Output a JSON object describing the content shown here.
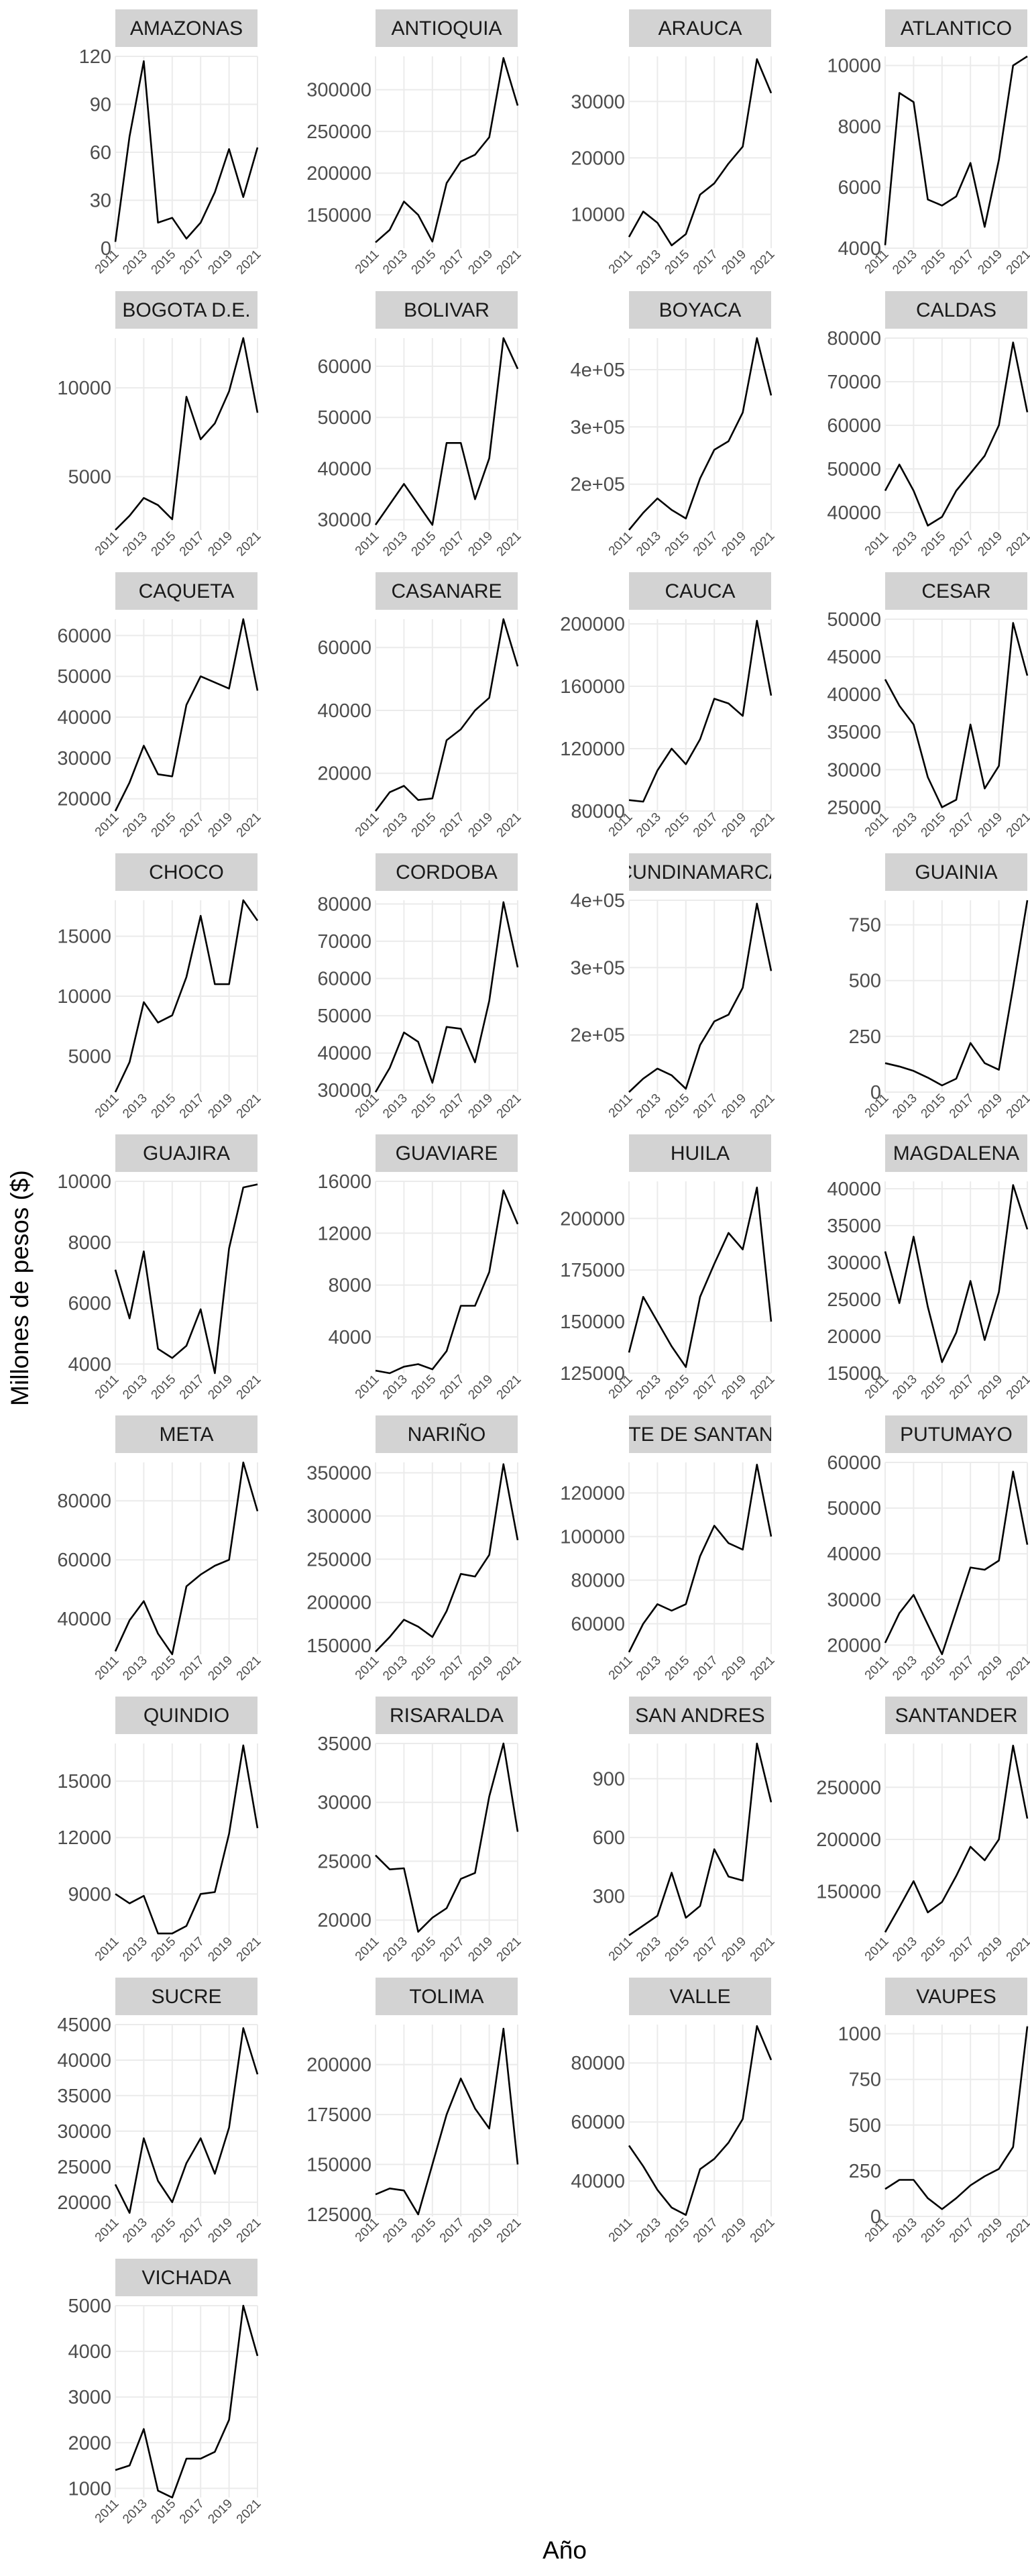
{
  "chart_data": {
    "type": "line",
    "xlabel": "Año",
    "ylabel": "Millones de pesos ($)",
    "x": [
      2011,
      2012,
      2013,
      2014,
      2015,
      2016,
      2017,
      2018,
      2019,
      2020,
      2021
    ],
    "x_tick_labels": [
      "2011",
      "2013",
      "2015",
      "2017",
      "2019",
      "2021"
    ],
    "grid": true,
    "facets": [
      {
        "name": "AMAZONAS",
        "values": [
          4,
          70,
          117,
          16,
          19,
          6,
          16,
          35,
          62,
          32,
          63
        ],
        "y_ticks": [
          "0",
          "30",
          "60",
          "90",
          "120"
        ],
        "ylim": [
          0,
          120
        ]
      },
      {
        "name": "ANTIOQUIA",
        "values": [
          117000,
          132000,
          166000,
          150000,
          118000,
          188000,
          214000,
          222000,
          243000,
          338000,
          281000
        ],
        "y_ticks": [
          "150000",
          "200000",
          "250000",
          "300000"
        ],
        "ylim": [
          110000,
          340000
        ]
      },
      {
        "name": "ARAUCA",
        "values": [
          6000,
          10500,
          8500,
          4500,
          6500,
          13500,
          15500,
          19000,
          22000,
          37500,
          31500
        ],
        "y_ticks": [
          "10000",
          "20000",
          "30000"
        ],
        "ylim": [
          4000,
          38000
        ]
      },
      {
        "name": "ATLANTICO",
        "values": [
          4100,
          9100,
          8800,
          5600,
          5400,
          5700,
          6800,
          4700,
          6900,
          10000,
          10300
        ],
        "y_ticks": [
          "4000",
          "6000",
          "8000",
          "10000"
        ],
        "ylim": [
          4000,
          10300
        ]
      },
      {
        "name": "BOGOTA D.E.",
        "values": [
          2000,
          2800,
          3800,
          3400,
          2600,
          9500,
          7100,
          8000,
          9800,
          12800,
          8600
        ],
        "y_ticks": [
          "5000",
          "10000"
        ],
        "ylim": [
          2000,
          12800
        ]
      },
      {
        "name": "BOLIVAR",
        "values": [
          29000,
          33000,
          37000,
          33000,
          29000,
          45000,
          45000,
          34000,
          42000,
          65500,
          59500
        ],
        "y_ticks": [
          "30000",
          "40000",
          "50000",
          "60000"
        ],
        "ylim": [
          28000,
          65500
        ]
      },
      {
        "name": "BOYACA",
        "values": [
          120000,
          150000,
          175000,
          155000,
          140000,
          210000,
          260000,
          275000,
          325000,
          455000,
          355000
        ],
        "y_ticks": [
          "2e+05",
          "3e+05",
          "4e+05"
        ],
        "ylim": [
          120000,
          455000
        ]
      },
      {
        "name": "CALDAS",
        "values": [
          45000,
          51000,
          45000,
          37000,
          39000,
          45000,
          49000,
          53000,
          60000,
          79000,
          63000
        ],
        "y_ticks": [
          "40000",
          "50000",
          "60000",
          "70000",
          "80000"
        ],
        "ylim": [
          36000,
          80000
        ]
      },
      {
        "name": "CAQUETA",
        "values": [
          17000,
          24000,
          33000,
          26000,
          25500,
          43000,
          50000,
          48500,
          47000,
          64000,
          46500
        ],
        "y_ticks": [
          "20000",
          "30000",
          "40000",
          "50000",
          "60000"
        ],
        "ylim": [
          17000,
          64000
        ]
      },
      {
        "name": "CASANARE",
        "values": [
          8000,
          14000,
          16000,
          11500,
          12000,
          30500,
          34000,
          40000,
          44000,
          69000,
          54000
        ],
        "y_ticks": [
          "20000",
          "40000",
          "60000"
        ],
        "ylim": [
          8000,
          69000
        ]
      },
      {
        "name": "CAUCA",
        "values": [
          87000,
          86000,
          106000,
          120000,
          110000,
          126000,
          152000,
          149000,
          141000,
          202000,
          154000
        ],
        "y_ticks": [
          "80000",
          "120000",
          "160000",
          "200000"
        ],
        "ylim": [
          80000,
          203000
        ]
      },
      {
        "name": "CESAR",
        "values": [
          42000,
          38500,
          36000,
          29000,
          25000,
          26000,
          36000,
          27500,
          30500,
          49500,
          42500
        ],
        "y_ticks": [
          "25000",
          "30000",
          "35000",
          "40000",
          "45000",
          "50000"
        ],
        "ylim": [
          24500,
          50000
        ]
      },
      {
        "name": "CHOCO",
        "values": [
          2000,
          4500,
          9500,
          7800,
          8400,
          11600,
          16700,
          11000,
          11000,
          18000,
          16300
        ],
        "y_ticks": [
          "5000",
          "10000",
          "15000"
        ],
        "ylim": [
          2000,
          18000
        ]
      },
      {
        "name": "CORDOBA",
        "values": [
          29500,
          36000,
          45500,
          43000,
          32000,
          47000,
          46500,
          37500,
          54000,
          80500,
          63000
        ],
        "y_ticks": [
          "30000",
          "40000",
          "50000",
          "60000",
          "70000",
          "80000"
        ],
        "ylim": [
          29500,
          81000
        ]
      },
      {
        "name": "CUNDINAMARCA",
        "values": [
          115000,
          135000,
          150000,
          140000,
          120000,
          185000,
          220000,
          230000,
          270000,
          395000,
          295000
        ],
        "y_ticks": [
          "2e+05",
          "3e+05",
          "4e+05"
        ],
        "ylim": [
          115000,
          400000
        ]
      },
      {
        "name": "GUAINIA",
        "values": [
          130,
          115,
          95,
          65,
          30,
          60,
          220,
          130,
          100,
          470,
          860
        ],
        "y_ticks": [
          "0",
          "250",
          "500",
          "750"
        ],
        "ylim": [
          0,
          860
        ]
      },
      {
        "name": "GUAJIRA",
        "values": [
          7100,
          5500,
          7700,
          4500,
          4200,
          4600,
          5800,
          3700,
          7800,
          9800,
          9900
        ],
        "y_ticks": [
          "4000",
          "6000",
          "8000",
          "10000"
        ],
        "ylim": [
          3700,
          10000
        ]
      },
      {
        "name": "GUAVIARE",
        "values": [
          1400,
          1200,
          1700,
          1900,
          1500,
          2900,
          6400,
          6400,
          9000,
          15300,
          12700
        ],
        "y_ticks": [
          "4000",
          "8000",
          "12000",
          "16000"
        ],
        "ylim": [
          1200,
          16000
        ]
      },
      {
        "name": "HUILA",
        "values": [
          135000,
          162000,
          150000,
          138000,
          128000,
          162000,
          178000,
          193000,
          185000,
          215000,
          150000
        ],
        "y_ticks": [
          "125000",
          "150000",
          "175000",
          "200000"
        ],
        "ylim": [
          125000,
          218000
        ]
      },
      {
        "name": "MAGDALENA",
        "values": [
          31500,
          24500,
          33500,
          24000,
          16500,
          20500,
          27500,
          19500,
          26000,
          40500,
          34500
        ],
        "y_ticks": [
          "15000",
          "20000",
          "25000",
          "30000",
          "35000",
          "40000"
        ],
        "ylim": [
          15000,
          41000
        ]
      },
      {
        "name": "META",
        "values": [
          29000,
          39500,
          46000,
          35000,
          28000,
          51000,
          55000,
          58000,
          60000,
          93000,
          76500
        ],
        "y_ticks": [
          "40000",
          "60000",
          "80000"
        ],
        "ylim": [
          28000,
          93000
        ]
      },
      {
        "name": "NARIÑO",
        "values": [
          143000,
          160000,
          180000,
          172000,
          160000,
          190000,
          233000,
          230000,
          255000,
          360000,
          272000
        ],
        "y_ticks": [
          "150000",
          "200000",
          "250000",
          "300000",
          "350000"
        ],
        "ylim": [
          140000,
          362000
        ]
      },
      {
        "name": "NORTE DE SANTANDER",
        "values": [
          47000,
          60000,
          69000,
          66000,
          69000,
          91000,
          105000,
          97000,
          94000,
          133000,
          100000
        ],
        "y_ticks": [
          "60000",
          "80000",
          "100000",
          "120000"
        ],
        "ylim": [
          46000,
          134000
        ]
      },
      {
        "name": "PUTUMAYO",
        "values": [
          20500,
          27000,
          31000,
          24500,
          18000,
          27500,
          37000,
          36500,
          38500,
          58000,
          42000
        ],
        "y_ticks": [
          "20000",
          "30000",
          "40000",
          "50000",
          "60000"
        ],
        "ylim": [
          18000,
          60000
        ]
      },
      {
        "name": "QUINDIO",
        "values": [
          9000,
          8500,
          8900,
          6900,
          6900,
          7300,
          9000,
          9100,
          12200,
          16900,
          12500
        ],
        "y_ticks": [
          "9000",
          "12000",
          "15000"
        ],
        "ylim": [
          6800,
          17000
        ]
      },
      {
        "name": "RISARALDA",
        "values": [
          25500,
          24300,
          24400,
          19000,
          20200,
          21000,
          23500,
          24000,
          30500,
          35000,
          27500
        ],
        "y_ticks": [
          "20000",
          "25000",
          "30000",
          "35000"
        ],
        "ylim": [
          18700,
          35000
        ]
      },
      {
        "name": "SAN ANDRES",
        "values": [
          100,
          150,
          200,
          420,
          190,
          250,
          540,
          400,
          380,
          1080,
          780
        ],
        "y_ticks": [
          "300",
          "600",
          "900"
        ],
        "ylim": [
          100,
          1080
        ]
      },
      {
        "name": "SANTANDER",
        "values": [
          111000,
          135000,
          160000,
          130000,
          140000,
          165000,
          193000,
          180000,
          200000,
          290000,
          220000
        ],
        "y_ticks": [
          "150000",
          "200000",
          "250000"
        ],
        "ylim": [
          108000,
          292000
        ]
      },
      {
        "name": "SUCRE",
        "values": [
          22500,
          18500,
          29000,
          23000,
          20000,
          25500,
          29000,
          24000,
          30500,
          44500,
          38000
        ],
        "y_ticks": [
          "20000",
          "25000",
          "30000",
          "35000",
          "40000",
          "45000"
        ],
        "ylim": [
          18000,
          45000
        ]
      },
      {
        "name": "TOLIMA",
        "values": [
          135000,
          138000,
          137000,
          125000,
          150000,
          175000,
          193000,
          178000,
          168000,
          218000,
          150000
        ],
        "y_ticks": [
          "125000",
          "150000",
          "175000",
          "200000"
        ],
        "ylim": [
          124000,
          220000
        ]
      },
      {
        "name": "VALLE",
        "values": [
          52000,
          45000,
          37000,
          31000,
          28500,
          44000,
          47500,
          53000,
          61000,
          92500,
          81000
        ],
        "y_ticks": [
          "40000",
          "60000",
          "80000"
        ],
        "ylim": [
          28000,
          93000
        ]
      },
      {
        "name": "VAUPES",
        "values": [
          150,
          200,
          200,
          100,
          40,
          100,
          170,
          220,
          260,
          380,
          1040
        ],
        "y_ticks": [
          "0",
          "250",
          "500",
          "750",
          "1000"
        ],
        "ylim": [
          0,
          1050
        ]
      },
      {
        "name": "VICHADA",
        "values": [
          1400,
          1500,
          2300,
          950,
          800,
          1650,
          1650,
          1800,
          2500,
          5000,
          3900
        ],
        "y_ticks": [
          "1000",
          "2000",
          "3000",
          "4000",
          "5000"
        ],
        "ylim": [
          800,
          5000
        ]
      }
    ]
  }
}
